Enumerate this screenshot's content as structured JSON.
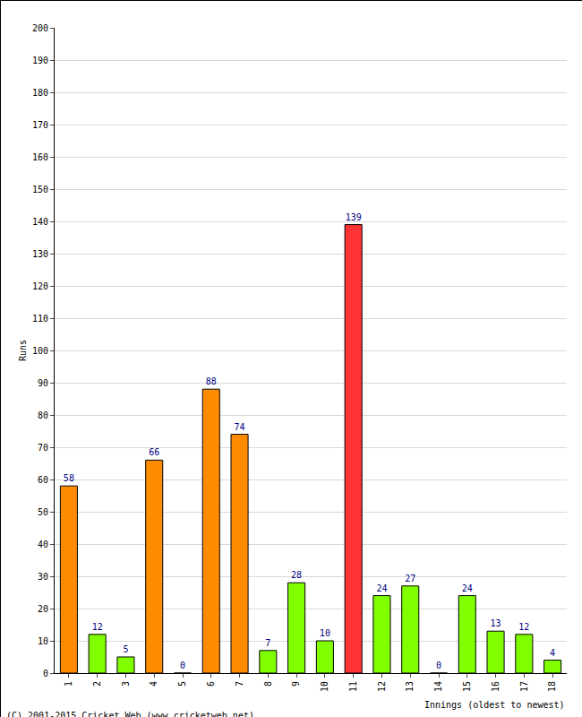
{
  "chart_data": {
    "type": "bar",
    "y_label": "Runs",
    "x_label": "Innings (oldest to newest)",
    "footer": "(C) 2001-2015 Cricket Web (www.cricketweb.net)",
    "categories": [
      "1",
      "2",
      "3",
      "4",
      "5",
      "6",
      "7",
      "8",
      "9",
      "10",
      "11",
      "12",
      "13",
      "14",
      "15",
      "16",
      "17",
      "18"
    ],
    "values": [
      58,
      12,
      5,
      66,
      0,
      88,
      74,
      7,
      28,
      10,
      139,
      24,
      27,
      0,
      24,
      13,
      12,
      4
    ],
    "colors": [
      "#ff8c00",
      "#80ff00",
      "#80ff00",
      "#ff8c00",
      "#80ff00",
      "#ff8c00",
      "#ff8c00",
      "#80ff00",
      "#80ff00",
      "#80ff00",
      "#ff3333",
      "#80ff00",
      "#80ff00",
      "#80ff00",
      "#80ff00",
      "#80ff00",
      "#80ff00",
      "#80ff00"
    ],
    "ylim": [
      0,
      200
    ],
    "yticks": [
      0,
      10,
      20,
      30,
      40,
      50,
      60,
      70,
      80,
      90,
      100,
      110,
      120,
      130,
      140,
      150,
      160,
      170,
      180,
      190,
      200
    ],
    "grid": true,
    "data_labels": true
  }
}
